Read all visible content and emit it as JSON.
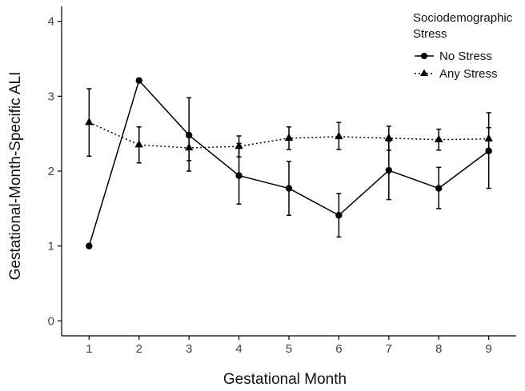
{
  "chart_data": {
    "type": "line",
    "xlabel": "Gestational Month",
    "ylabel": "Gestational-Month-Specific ALI",
    "x": [
      1,
      2,
      3,
      4,
      5,
      6,
      7,
      8,
      9
    ],
    "xlim": [
      0.45,
      9.55
    ],
    "ylim": [
      -0.2,
      4.2
    ],
    "yticks": [
      0,
      1,
      2,
      3,
      4
    ],
    "grid": false,
    "legend": {
      "title_line1": "Sociodemographic",
      "title_line2": "Stress",
      "placement": "top-right"
    },
    "series": [
      {
        "name": "No Stress",
        "marker": "circle",
        "line_style": "solid",
        "color": "#000000",
        "values": [
          1.0,
          3.21,
          2.48,
          1.94,
          1.77,
          1.41,
          2.01,
          1.77,
          2.27
        ],
        "err_low": [
          null,
          null,
          2.0,
          1.56,
          1.41,
          1.12,
          1.62,
          1.5,
          1.77
        ],
        "err_high": [
          null,
          null,
          2.98,
          2.37,
          2.13,
          1.7,
          2.4,
          2.05,
          2.78
        ]
      },
      {
        "name": "Any Stress",
        "marker": "triangle",
        "line_style": "dotted",
        "color": "#000000",
        "values": [
          2.65,
          2.35,
          2.31,
          2.33,
          2.44,
          2.46,
          2.44,
          2.42,
          2.43
        ],
        "err_low": [
          2.2,
          2.11,
          2.14,
          2.19,
          2.29,
          2.29,
          2.28,
          2.28,
          2.28
        ],
        "err_high": [
          3.1,
          2.59,
          2.48,
          2.47,
          2.59,
          2.65,
          2.6,
          2.56,
          2.58
        ]
      }
    ]
  }
}
